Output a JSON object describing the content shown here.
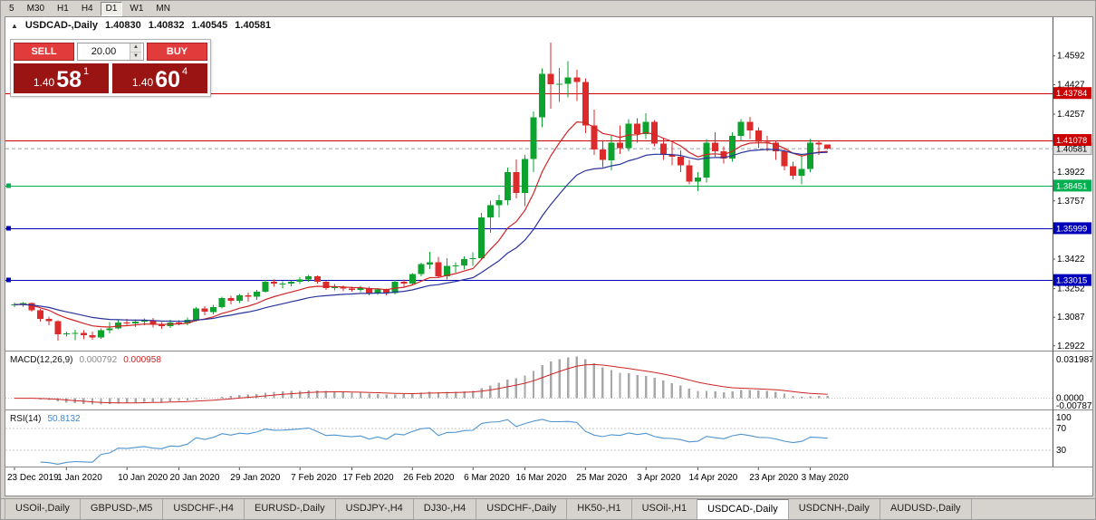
{
  "toolbar": {
    "timeframes": [
      {
        "label": "5"
      },
      {
        "label": "M30"
      },
      {
        "label": "H1"
      },
      {
        "label": "H4"
      },
      {
        "label": "D1",
        "active": true
      },
      {
        "label": "W1"
      },
      {
        "label": "MN"
      }
    ]
  },
  "chart": {
    "title": {
      "symbol": "USDCAD-,Daily",
      "open": "1.40830",
      "high": "1.40832",
      "low": "1.40545",
      "close": "1.40581"
    },
    "trade_panel": {
      "sell_label": "SELL",
      "buy_label": "BUY",
      "volume": "20.00",
      "sell_price": {
        "small": "1.40",
        "big": "58",
        "sup": "1"
      },
      "buy_price": {
        "small": "1.40",
        "big": "60",
        "sup": "4"
      }
    }
  },
  "chart_data": {
    "type": "candlestick",
    "symbol": "USDCAD",
    "timeframe": "Daily",
    "colors": {
      "up": "#0ea32e",
      "down": "#dd2b2b",
      "ma_fast": "#cf2525",
      "ma_slow": "#2a339c",
      "macd_hist": "#a8a8a8",
      "macd_signal": "#cf2525",
      "rsi": "#4f94d0",
      "current_line": "#9aa0a6"
    },
    "price_axis": {
      "min": 1.2895,
      "max": 1.4815,
      "ticks": [
        1.4592,
        1.4427,
        1.4257,
        1.3922,
        1.3757,
        1.3422,
        1.3252,
        1.3087,
        1.2922
      ]
    },
    "hlines": [
      {
        "price": 1.43784,
        "label": "1.43784",
        "color": "#cc0000",
        "handles": false
      },
      {
        "price": 1.41078,
        "label": "1.41078",
        "color": "#cc0000",
        "handles": false
      },
      {
        "price": 1.38451,
        "label": "1.38451",
        "color": "#00b050",
        "handles": true
      },
      {
        "price": 1.35999,
        "label": "1.35999",
        "color": "#0000bb",
        "handles": true
      },
      {
        "price": 1.33015,
        "label": "1.33015",
        "color": "#0000bb",
        "handles": true
      }
    ],
    "current_price": {
      "value": 1.40581,
      "label": "1.40581"
    },
    "moving_averages": [
      {
        "period": 10,
        "color": "#cf2525"
      },
      {
        "period": 22,
        "color": "#2a339c"
      }
    ],
    "macd": {
      "label": "MACD(12,26,9)",
      "value_main": "0.000792",
      "value_signal": "0.000958",
      "axis_ticks": [
        "0.031987",
        "0.0000",
        "-0.007875"
      ],
      "params": [
        12,
        26,
        9
      ]
    },
    "rsi": {
      "label": "RSI(14)",
      "value": "50.8132",
      "axis_ticks": [
        "100",
        "70",
        "30"
      ],
      "levels": [
        70,
        30
      ],
      "period": 14
    },
    "date_labels": [
      {
        "i": 0,
        "label": "23 Dec 2019"
      },
      {
        "i": 6,
        "label": "1 Jan 2020"
      },
      {
        "i": 13,
        "label": "10 Jan 2020"
      },
      {
        "i": 19,
        "label": "20 Jan 2020"
      },
      {
        "i": 26,
        "label": "29 Jan 2020"
      },
      {
        "i": 33,
        "label": "7 Feb 2020"
      },
      {
        "i": 39,
        "label": "17 Feb 2020"
      },
      {
        "i": 46,
        "label": "26 Feb 2020"
      },
      {
        "i": 53,
        "label": "6 Mar 2020"
      },
      {
        "i": 59,
        "label": "16 Mar 2020"
      },
      {
        "i": 66,
        "label": "25 Mar 2020"
      },
      {
        "i": 73,
        "label": "3 Apr 2020"
      },
      {
        "i": 79,
        "label": "14 Apr 2020"
      },
      {
        "i": 86,
        "label": "23 Apr 2020"
      },
      {
        "i": 92,
        "label": "3 May 2020"
      }
    ],
    "candles": [
      [
        1.3155,
        1.3172,
        1.3145,
        1.316
      ],
      [
        1.316,
        1.3175,
        1.3148,
        1.3168
      ],
      [
        1.3168,
        1.3172,
        1.312,
        1.3128
      ],
      [
        1.3128,
        1.3135,
        1.3062,
        1.3078
      ],
      [
        1.3078,
        1.309,
        1.304,
        1.3065
      ],
      [
        1.3065,
        1.307,
        1.2952,
        1.2988
      ],
      [
        1.2988,
        1.3005,
        1.2975,
        1.2995
      ],
      [
        1.2995,
        1.3015,
        1.2955,
        1.2998
      ],
      [
        1.2998,
        1.3012,
        1.296,
        1.2985
      ],
      [
        1.2985,
        1.3005,
        1.2958,
        1.297
      ],
      [
        1.297,
        1.3022,
        1.2962,
        1.3012
      ],
      [
        1.3012,
        1.306,
        1.2995,
        1.3022
      ],
      [
        1.3022,
        1.307,
        1.3018,
        1.3058
      ],
      [
        1.3058,
        1.3078,
        1.3035,
        1.3052
      ],
      [
        1.3052,
        1.3075,
        1.303,
        1.3062
      ],
      [
        1.3062,
        1.308,
        1.304,
        1.307
      ],
      [
        1.307,
        1.3082,
        1.3028,
        1.3045
      ],
      [
        1.3045,
        1.306,
        1.302,
        1.3035
      ],
      [
        1.3035,
        1.3072,
        1.3025,
        1.3058
      ],
      [
        1.3058,
        1.307,
        1.3042,
        1.3052
      ],
      [
        1.3052,
        1.3085,
        1.304,
        1.3072
      ],
      [
        1.3072,
        1.3145,
        1.3062,
        1.3138
      ],
      [
        1.3138,
        1.315,
        1.3098,
        1.3118
      ],
      [
        1.3118,
        1.3158,
        1.3105,
        1.3145
      ],
      [
        1.3145,
        1.3205,
        1.3138,
        1.3198
      ],
      [
        1.3198,
        1.321,
        1.316,
        1.3182
      ],
      [
        1.3182,
        1.3222,
        1.317,
        1.3212
      ],
      [
        1.3212,
        1.3228,
        1.3178,
        1.3205
      ],
      [
        1.3205,
        1.3245,
        1.3188,
        1.3235
      ],
      [
        1.3235,
        1.3302,
        1.3228,
        1.3292
      ],
      [
        1.3292,
        1.3305,
        1.3262,
        1.328
      ],
      [
        1.328,
        1.3295,
        1.3252,
        1.3282
      ],
      [
        1.3282,
        1.33,
        1.3265,
        1.3292
      ],
      [
        1.3292,
        1.3318,
        1.3278,
        1.3305
      ],
      [
        1.3305,
        1.333,
        1.3292,
        1.3322
      ],
      [
        1.3322,
        1.3328,
        1.3282,
        1.3292
      ],
      [
        1.3292,
        1.3298,
        1.3245,
        1.3255
      ],
      [
        1.3255,
        1.3278,
        1.3242,
        1.3262
      ],
      [
        1.3262,
        1.327,
        1.3238,
        1.3252
      ],
      [
        1.3252,
        1.3262,
        1.3235,
        1.3245
      ],
      [
        1.3245,
        1.3268,
        1.3232,
        1.3255
      ],
      [
        1.3255,
        1.3262,
        1.3212,
        1.3225
      ],
      [
        1.3225,
        1.3255,
        1.3215,
        1.3248
      ],
      [
        1.3248,
        1.3252,
        1.3212,
        1.3225
      ],
      [
        1.3225,
        1.3302,
        1.3218,
        1.3292
      ],
      [
        1.3292,
        1.3305,
        1.3262,
        1.3282
      ],
      [
        1.3282,
        1.3342,
        1.3272,
        1.3335
      ],
      [
        1.3335,
        1.3402,
        1.3322,
        1.3392
      ],
      [
        1.3392,
        1.3464,
        1.3365,
        1.3405
      ],
      [
        1.3405,
        1.3435,
        1.3312,
        1.3322
      ],
      [
        1.3322,
        1.3428,
        1.3305,
        1.3382
      ],
      [
        1.3382,
        1.3405,
        1.3345,
        1.3385
      ],
      [
        1.3385,
        1.3438,
        1.3362,
        1.3422
      ],
      [
        1.3422,
        1.3462,
        1.3382,
        1.3428
      ],
      [
        1.3428,
        1.3688,
        1.3422,
        1.3662
      ],
      [
        1.3662,
        1.3758,
        1.3572,
        1.3732
      ],
      [
        1.3732,
        1.3792,
        1.3662,
        1.3762
      ],
      [
        1.3762,
        1.3948,
        1.3732,
        1.3922
      ],
      [
        1.3922,
        1.3995,
        1.3772,
        1.3802
      ],
      [
        1.3802,
        1.4022,
        1.3728,
        1.3998
      ],
      [
        1.3998,
        1.4272,
        1.3922,
        1.4238
      ],
      [
        1.4238,
        1.452,
        1.4182,
        1.449
      ],
      [
        1.449,
        1.4668,
        1.4288,
        1.4428
      ],
      [
        1.4428,
        1.4522,
        1.4328,
        1.4432
      ],
      [
        1.4432,
        1.4562,
        1.4352,
        1.4468
      ],
      [
        1.4468,
        1.4512,
        1.4332,
        1.4442
      ],
      [
        1.4442,
        1.4462,
        1.4148,
        1.4192
      ],
      [
        1.4192,
        1.4282,
        1.4022,
        1.4052
      ],
      [
        1.4052,
        1.4108,
        1.3952,
        1.3992
      ],
      [
        1.3992,
        1.4132,
        1.3932,
        1.4092
      ],
      [
        1.4092,
        1.4192,
        1.4028,
        1.4062
      ],
      [
        1.4062,
        1.4228,
        1.4042,
        1.4202
      ],
      [
        1.4202,
        1.4232,
        1.4092,
        1.4142
      ],
      [
        1.4142,
        1.4262,
        1.4112,
        1.4212
      ],
      [
        1.4212,
        1.4222,
        1.4072,
        1.4088
      ],
      [
        1.4088,
        1.4122,
        1.3992,
        1.4022
      ],
      [
        1.4022,
        1.4092,
        1.3962,
        1.4012
      ],
      [
        1.4012,
        1.4048,
        1.3922,
        1.3962
      ],
      [
        1.3962,
        1.3992,
        1.3852,
        1.3868
      ],
      [
        1.3868,
        1.3922,
        1.3812,
        1.3892
      ],
      [
        1.3892,
        1.4112,
        1.3862,
        1.4092
      ],
      [
        1.4092,
        1.4152,
        1.4012,
        1.4042
      ],
      [
        1.4042,
        1.4072,
        1.3972,
        1.4002
      ],
      [
        1.4002,
        1.4152,
        1.3982,
        1.4132
      ],
      [
        1.4132,
        1.4228,
        1.4102,
        1.4212
      ],
      [
        1.4212,
        1.4242,
        1.4112,
        1.4162
      ],
      [
        1.4162,
        1.4182,
        1.4062,
        1.4098
      ],
      [
        1.4098,
        1.4132,
        1.4042,
        1.4092
      ],
      [
        1.4092,
        1.4102,
        1.3992,
        1.4042
      ],
      [
        1.4042,
        1.4062,
        1.3932,
        1.3958
      ],
      [
        1.3958,
        1.3982,
        1.3882,
        1.3902
      ],
      [
        1.3902,
        1.4022,
        1.3852,
        1.3942
      ],
      [
        1.3942,
        1.4112,
        1.3922,
        1.4092
      ],
      [
        1.4092,
        1.4105,
        1.4022,
        1.4083
      ],
      [
        1.4083,
        1.40832,
        1.40545,
        1.40581
      ]
    ]
  },
  "tabbar": {
    "tabs": [
      {
        "label": "USOil-,Daily"
      },
      {
        "label": "GBPUSD-,M5"
      },
      {
        "label": "USDCHF-,H4"
      },
      {
        "label": "EURUSD-,Daily"
      },
      {
        "label": "USDJPY-,H4"
      },
      {
        "label": "DJ30-,H4"
      },
      {
        "label": "USDCHF-,Daily"
      },
      {
        "label": "HK50-,H1"
      },
      {
        "label": "USOil-,H1"
      },
      {
        "label": "USDCAD-,Daily",
        "active": true
      },
      {
        "label": "USDCNH-,Daily"
      },
      {
        "label": "AUDUSD-,Daily"
      }
    ]
  }
}
